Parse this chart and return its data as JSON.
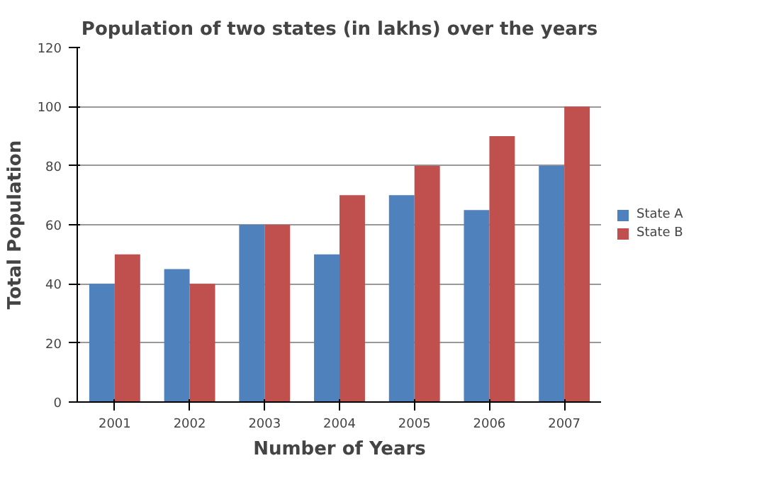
{
  "chart_data": {
    "type": "bar",
    "title": "Population of two states (in lakhs) over the years",
    "xlabel": "Number of Years",
    "ylabel": "Total Population",
    "categories": [
      "2001",
      "2002",
      "2003",
      "2004",
      "2005",
      "2006",
      "2007"
    ],
    "series": [
      {
        "name": "State A",
        "color": "#4f81bd",
        "values": [
          40,
          45,
          60,
          50,
          70,
          65,
          80
        ]
      },
      {
        "name": "State B",
        "color": "#c0504d",
        "values": [
          50,
          40,
          60,
          70,
          80,
          90,
          100
        ]
      }
    ],
    "ylim": [
      0,
      120
    ],
    "yticks": [
      0,
      20,
      40,
      60,
      80,
      100,
      120
    ],
    "grid": "y",
    "legend": "right"
  }
}
